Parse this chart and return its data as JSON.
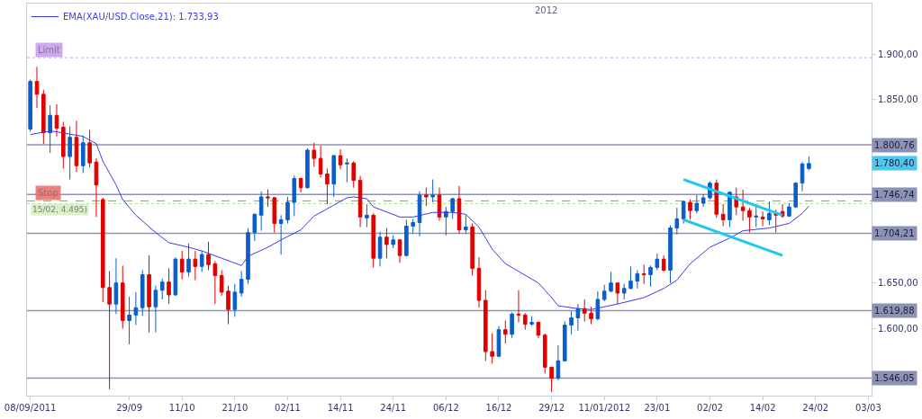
{
  "chart_data": {
    "type": "candlestick",
    "categories": [
      "08/09/2011",
      null,
      null,
      null,
      null,
      null,
      null,
      null,
      null,
      null,
      null,
      null,
      null,
      null,
      null,
      "29/09",
      null,
      null,
      null,
      null,
      null,
      null,
      null,
      "11/10",
      null,
      null,
      null,
      null,
      null,
      null,
      null,
      "21/10",
      null,
      null,
      null,
      null,
      null,
      null,
      null,
      "02/11",
      null,
      null,
      null,
      null,
      null,
      null,
      null,
      "14/11",
      null,
      null,
      null,
      null,
      null,
      null,
      null,
      "24/11",
      null,
      null,
      null,
      null,
      null,
      null,
      null,
      "06/12",
      null,
      null,
      null,
      null,
      null,
      null,
      null,
      "16/12",
      null,
      null,
      null,
      null,
      null,
      null,
      null,
      "29/12",
      null,
      null,
      null,
      null,
      null,
      null,
      null,
      "11/01/2012",
      null,
      null,
      null,
      null,
      null,
      null,
      null,
      "23/01",
      null,
      null,
      null,
      null,
      null,
      null,
      null,
      "02/02",
      null,
      null,
      null,
      null,
      null,
      null,
      null,
      "14/02",
      null,
      null,
      null,
      null,
      null,
      null,
      null,
      "24/02",
      null,
      null,
      null,
      null,
      null,
      null,
      null,
      "03/03"
    ],
    "ohlc": [
      [
        1818,
        1872,
        1815,
        1870
      ],
      [
        1870,
        1886,
        1841,
        1856
      ],
      [
        1856,
        1861,
        1802,
        1814
      ],
      [
        1814,
        1844,
        1792,
        1833
      ],
      [
        1833,
        1845,
        1810,
        1819
      ],
      [
        1820,
        1826,
        1775,
        1788
      ],
      [
        1788,
        1821,
        1763,
        1809
      ],
      [
        1809,
        1827,
        1771,
        1778
      ],
      [
        1778,
        1811,
        1770,
        1803
      ],
      [
        1803,
        1817,
        1776,
        1781
      ],
      [
        1782,
        1786,
        1722,
        1757
      ],
      [
        1741,
        1743,
        1629,
        1645
      ],
      [
        1645,
        1663,
        1534,
        1627
      ],
      [
        1627,
        1677,
        1616,
        1650
      ],
      [
        1650,
        1669,
        1600,
        1609
      ],
      [
        1609,
        1635,
        1583,
        1615
      ],
      [
        1615,
        1640,
        1604,
        1623
      ],
      [
        1623,
        1664,
        1614,
        1659
      ],
      [
        1659,
        1680,
        1596,
        1624
      ],
      [
        1624,
        1647,
        1596,
        1642
      ],
      [
        1642,
        1655,
        1632,
        1651
      ],
      [
        1651,
        1666,
        1627,
        1637
      ],
      [
        1637,
        1678,
        1636,
        1676
      ],
      [
        1676,
        1685,
        1654,
        1662
      ],
      [
        1662,
        1693,
        1657,
        1676
      ],
      [
        1676,
        1685,
        1653,
        1668
      ],
      [
        1668,
        1685,
        1662,
        1681
      ],
      [
        1681,
        1695,
        1664,
        1670
      ],
      [
        1671,
        1674,
        1627,
        1658
      ],
      [
        1658,
        1664,
        1636,
        1640
      ],
      [
        1641,
        1647,
        1605,
        1621
      ],
      [
        1621,
        1649,
        1613,
        1640
      ],
      [
        1639,
        1663,
        1635,
        1654
      ],
      [
        1654,
        1710,
        1649,
        1705
      ],
      [
        1705,
        1726,
        1696,
        1725
      ],
      [
        1724,
        1750,
        1707,
        1744
      ],
      [
        1744,
        1752,
        1733,
        1743
      ],
      [
        1743,
        1744,
        1705,
        1715
      ],
      [
        1715,
        1724,
        1681,
        1719
      ],
      [
        1719,
        1744,
        1715,
        1738
      ],
      [
        1738,
        1767,
        1723,
        1764
      ],
      [
        1764,
        1765,
        1749,
        1754
      ],
      [
        1754,
        1797,
        1753,
        1795
      ],
      [
        1795,
        1803,
        1777,
        1786
      ],
      [
        1786,
        1800,
        1765,
        1769
      ],
      [
        1769,
        1775,
        1736,
        1758
      ],
      [
        1758,
        1790,
        1744,
        1789
      ],
      [
        1789,
        1796,
        1774,
        1779
      ],
      [
        1780,
        1786,
        1760,
        1781
      ],
      [
        1781,
        1783,
        1754,
        1762
      ],
      [
        1762,
        1767,
        1711,
        1722
      ],
      [
        1721,
        1736,
        1711,
        1724
      ],
      [
        1724,
        1726,
        1667,
        1677
      ],
      [
        1677,
        1706,
        1668,
        1700
      ],
      [
        1700,
        1710,
        1677,
        1692
      ],
      [
        1692,
        1702,
        1688,
        1697
      ],
      [
        1697,
        1698,
        1672,
        1680
      ],
      [
        1680,
        1719,
        1679,
        1712
      ],
      [
        1712,
        1720,
        1704,
        1716
      ],
      [
        1716,
        1750,
        1701,
        1746
      ],
      [
        1746,
        1754,
        1734,
        1744
      ],
      [
        1744,
        1763,
        1738,
        1746
      ],
      [
        1746,
        1754,
        1718,
        1722
      ],
      [
        1722,
        1733,
        1702,
        1728
      ],
      [
        1728,
        1743,
        1720,
        1742
      ],
      [
        1742,
        1756,
        1704,
        1708
      ],
      [
        1708,
        1724,
        1704,
        1711
      ],
      [
        1711,
        1715,
        1658,
        1666
      ],
      [
        1666,
        1678,
        1623,
        1631
      ],
      [
        1631,
        1642,
        1565,
        1575
      ],
      [
        1575,
        1595,
        1562,
        1570
      ],
      [
        1570,
        1603,
        1569,
        1599
      ],
      [
        1599,
        1609,
        1584,
        1594
      ],
      [
        1594,
        1618,
        1590,
        1616
      ],
      [
        1616,
        1642,
        1607,
        1615
      ],
      [
        1615,
        1617,
        1599,
        1605
      ],
      [
        1605,
        1614,
        1603,
        1607
      ],
      [
        1607,
        1608,
        1590,
        1593
      ],
      [
        1593,
        1595,
        1551,
        1558
      ],
      [
        1558,
        1558,
        1531,
        1546
      ],
      [
        1546,
        1582,
        1544,
        1565
      ],
      [
        1565,
        1608,
        1564,
        1604
      ],
      [
        1604,
        1619,
        1594,
        1612
      ],
      [
        1612,
        1627,
        1598,
        1622
      ],
      [
        1622,
        1632,
        1608,
        1617
      ],
      [
        1617,
        1624,
        1605,
        1611
      ],
      [
        1611,
        1641,
        1609,
        1632
      ],
      [
        1632,
        1648,
        1630,
        1641
      ],
      [
        1641,
        1662,
        1640,
        1650
      ],
      [
        1650,
        1650,
        1627,
        1639
      ],
      [
        1639,
        1649,
        1632,
        1644
      ],
      [
        1644,
        1668,
        1643,
        1652
      ],
      [
        1652,
        1664,
        1644,
        1660
      ],
      [
        1660,
        1670,
        1649,
        1659
      ],
      [
        1659,
        1669,
        1646,
        1667
      ],
      [
        1667,
        1682,
        1664,
        1676
      ],
      [
        1676,
        1680,
        1662,
        1664
      ],
      [
        1664,
        1713,
        1650,
        1710
      ],
      [
        1710,
        1732,
        1703,
        1720
      ],
      [
        1720,
        1740,
        1715,
        1739
      ],
      [
        1738,
        1741,
        1719,
        1729
      ],
      [
        1729,
        1746,
        1726,
        1737
      ],
      [
        1737,
        1747,
        1733,
        1743
      ],
      [
        1743,
        1761,
        1741,
        1759
      ],
      [
        1759,
        1763,
        1721,
        1725
      ],
      [
        1725,
        1736,
        1712,
        1719
      ],
      [
        1719,
        1750,
        1711,
        1749
      ],
      [
        1744,
        1754,
        1724,
        1733
      ],
      [
        1733,
        1752,
        1718,
        1729
      ],
      [
        1729,
        1732,
        1705,
        1722
      ],
      [
        1722,
        1736,
        1711,
        1723
      ],
      [
        1722,
        1728,
        1712,
        1720
      ],
      [
        1719,
        1739,
        1713,
        1726
      ],
      [
        1726,
        1730,
        1705,
        1724
      ],
      [
        1728,
        1736,
        1721,
        1723
      ],
      [
        1723,
        1737,
        1722,
        1733
      ],
      [
        1733,
        1760,
        1732,
        1759
      ],
      [
        1759,
        1782,
        1750,
        1780
      ],
      [
        1775,
        1788,
        1773,
        1780.4
      ],
      null,
      null,
      null,
      null,
      null,
      null,
      null,
      null,
      null
    ],
    "ylim": [
      1527,
      1955
    ],
    "yticks": [
      {
        "value": 1600,
        "label": "1.600,00"
      },
      {
        "value": 1650,
        "label": "1.650,00"
      },
      {
        "value": 1850,
        "label": "1.850,00"
      },
      {
        "value": 1900,
        "label": "1.900,00"
      }
    ],
    "series": [
      {
        "name": "EMA(XAU/USD.Close,21): 1.733,93",
        "type": "line",
        "color": "#3a3af0",
        "values": [
          1812,
          null,
          null,
          1816,
          1815,
          null,
          null,
          null,
          1810,
          null,
          1802,
          1783,
          null,
          1757,
          1741,
          null,
          1724,
          null,
          null,
          1705,
          null,
          1694,
          null,
          null,
          1689,
          null,
          1685,
          null,
          null,
          1677,
          null,
          null,
          1669,
          1679,
          null,
          null,
          1689,
          null,
          1697,
          null,
          null,
          1708,
          null,
          1723,
          null,
          1731,
          null,
          null,
          1743,
          1744,
          null,
          1742,
          1733,
          null,
          null,
          null,
          1722,
          null,
          1722,
          null,
          null,
          1727,
          null,
          null,
          1727,
          null,
          1725,
          null,
          1711,
          null,
          1687,
          null,
          1671,
          null,
          null,
          null,
          null,
          1650,
          null,
          1634,
          1625,
          null,
          null,
          1622,
          null,
          1621,
          null,
          null,
          null,
          1627,
          null,
          null,
          null,
          1634,
          null,
          null,
          1644,
          null,
          1653,
          null,
          1671,
          null,
          null,
          1689,
          null,
          null,
          1699,
          null,
          1707,
          null,
          null,
          null,
          1710,
          null,
          null,
          1715,
          null,
          1726,
          1734,
          null,
          null,
          null,
          null,
          null,
          null,
          null,
          null,
          null
        ]
      },
      {
        "type": "line",
        "color": "#1ec8f0",
        "values": [
          null,
          null,
          null,
          null,
          null,
          null,
          null,
          null,
          null,
          null,
          null,
          null,
          null,
          null,
          null,
          null,
          null,
          null,
          null,
          null,
          null,
          null,
          null,
          null,
          null,
          null,
          null,
          null,
          null,
          null,
          null,
          null,
          null,
          null,
          null,
          null,
          null,
          null,
          null,
          null,
          null,
          null,
          null,
          null,
          null,
          null,
          null,
          null,
          null,
          null,
          null,
          null,
          null,
          null,
          null,
          null,
          null,
          null,
          null,
          null,
          null,
          null,
          null,
          null,
          null,
          null,
          null,
          null,
          null,
          null,
          null,
          null,
          null,
          null,
          null,
          null,
          null,
          null,
          null,
          null,
          null,
          null,
          null,
          null,
          null,
          null,
          null,
          null,
          null,
          null,
          null,
          null,
          null,
          null,
          null,
          null,
          null,
          null,
          null,
          1763,
          null,
          null,
          null,
          null,
          null,
          null,
          null,
          null,
          null,
          null,
          null,
          null,
          null,
          null,
          1724,
          null,
          null,
          null,
          null,
          null,
          null,
          null,
          null,
          null,
          null,
          null,
          null,
          null
        ]
      },
      {
        "type": "line",
        "color": "#1ec8f0",
        "values": [
          null,
          null,
          null,
          null,
          null,
          null,
          null,
          null,
          null,
          null,
          null,
          null,
          null,
          null,
          null,
          null,
          null,
          null,
          null,
          null,
          null,
          null,
          null,
          null,
          null,
          null,
          null,
          null,
          null,
          null,
          null,
          null,
          null,
          null,
          null,
          null,
          null,
          null,
          null,
          null,
          null,
          null,
          null,
          null,
          null,
          null,
          null,
          null,
          null,
          null,
          null,
          null,
          null,
          null,
          null,
          null,
          null,
          null,
          null,
          null,
          null,
          null,
          null,
          null,
          null,
          null,
          null,
          null,
          null,
          null,
          null,
          null,
          null,
          null,
          null,
          null,
          null,
          null,
          null,
          null,
          null,
          null,
          null,
          null,
          null,
          null,
          null,
          null,
          null,
          null,
          null,
          null,
          null,
          null,
          null,
          null,
          null,
          null,
          null,
          1719,
          null,
          null,
          null,
          null,
          null,
          null,
          null,
          null,
          null,
          null,
          null,
          null,
          null,
          null,
          1680,
          null,
          null,
          null,
          null,
          null,
          null,
          null,
          null,
          null,
          null,
          null,
          null,
          null
        ]
      }
    ],
    "ref_lines": [
      {
        "axis": "y",
        "value": 1800.76,
        "label": "1.800,76",
        "color": "#8c92b4",
        "line_style": "solid"
      },
      {
        "axis": "y",
        "value": 1746.74,
        "label": "1.746,74",
        "color": "#8c92b4",
        "line_style": "solid"
      },
      {
        "axis": "y",
        "value": 1704.21,
        "label": "1.704,21",
        "color": "#8c92b4",
        "line_style": "solid"
      },
      {
        "axis": "y",
        "value": 1619.88,
        "label": "1.619,88",
        "color": "#8c92b4",
        "line_style": "solid"
      },
      {
        "axis": "y",
        "value": 1546.05,
        "label": "1.546,05",
        "color": "#8c92b4",
        "line_style": "solid"
      },
      {
        "axis": "y",
        "value": 1896,
        "label": "Limit",
        "color": "#c9a0f0",
        "line_style": "dotted"
      },
      {
        "axis": "y",
        "value": 1739.6,
        "label": "Stop",
        "color": "#f07070",
        "line_style": "dashed"
      },
      {
        "axis": "y",
        "value": 1736.7,
        "color": "#a8dc88",
        "line_style": "dotted"
      }
    ],
    "annotations": [
      "2012",
      "15/02, 4.495)",
      "1.780,40"
    ],
    "legend": "top left"
  }
}
